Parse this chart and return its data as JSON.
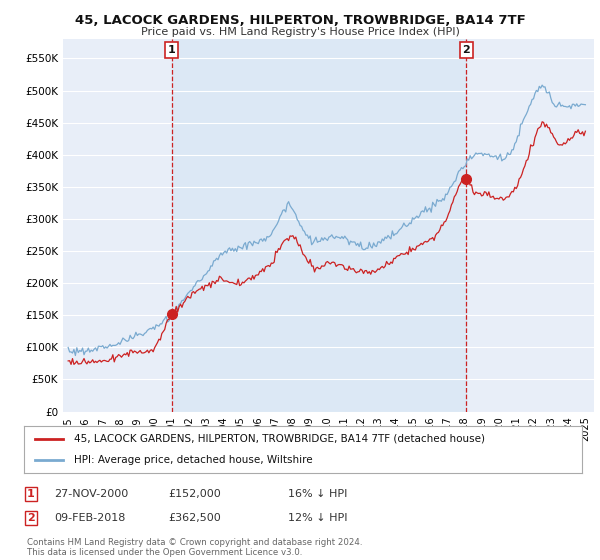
{
  "title": "45, LACOCK GARDENS, HILPERTON, TROWBRIDGE, BA14 7TF",
  "subtitle": "Price paid vs. HM Land Registry's House Price Index (HPI)",
  "bg_color": "#ffffff",
  "plot_bg_color": "#e8eef8",
  "grid_color": "#ffffff",
  "line1_color": "#cc2222",
  "line2_color": "#7aaad0",
  "vline_color": "#cc2222",
  "shade_color": "#dce8f5",
  "ylim": [
    0,
    580000
  ],
  "yticks": [
    0,
    50000,
    100000,
    150000,
    200000,
    250000,
    300000,
    350000,
    400000,
    450000,
    500000,
    550000
  ],
  "ytick_labels": [
    "£0",
    "£50K",
    "£100K",
    "£150K",
    "£200K",
    "£250K",
    "£300K",
    "£350K",
    "£400K",
    "£450K",
    "£500K",
    "£550K"
  ],
  "legend1_label": "45, LACOCK GARDENS, HILPERTON, TROWBRIDGE, BA14 7TF (detached house)",
  "legend2_label": "HPI: Average price, detached house, Wiltshire",
  "annotation1_date": "27-NOV-2000",
  "annotation1_price": "£152,000",
  "annotation1_hpi": "16% ↓ HPI",
  "annotation2_date": "09-FEB-2018",
  "annotation2_price": "£362,500",
  "annotation2_hpi": "12% ↓ HPI",
  "footer": "Contains HM Land Registry data © Crown copyright and database right 2024.\nThis data is licensed under the Open Government Licence v3.0.",
  "sale1_x": 2001.0,
  "sale1_y": 152000,
  "sale2_x": 2018.1,
  "sale2_y": 362500,
  "xlim_left": 1994.7,
  "xlim_right": 2025.5
}
